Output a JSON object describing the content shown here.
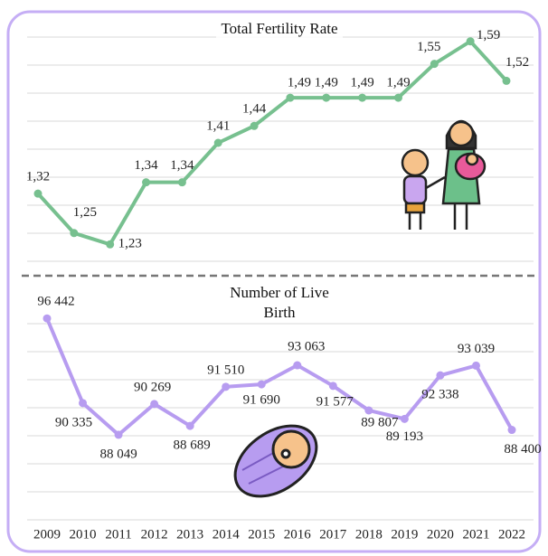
{
  "chart_data": [
    {
      "type": "line",
      "title": "Total Fertility Rate",
      "color": "#77c08f",
      "values": [
        1.32,
        1.25,
        1.23,
        1.34,
        1.34,
        1.41,
        1.44,
        1.49,
        1.49,
        1.49,
        1.49,
        1.55,
        1.59,
        1.52
      ],
      "value_labels": [
        "1,32",
        "1,25",
        "1,23",
        "1,34",
        "1,34",
        "1,41",
        "1,44",
        "1,49",
        "1,49",
        "1,49",
        "1,49",
        "1,55",
        "1,59",
        "1,52"
      ],
      "ylim": [
        1.2,
        1.62
      ]
    },
    {
      "type": "line",
      "title": "Number of Live Birth",
      "color": "#b79cf0",
      "categories": [
        "2009",
        "2010",
        "2011",
        "2012",
        "2013",
        "2014",
        "2015",
        "2016",
        "2017",
        "2018",
        "2019",
        "2020",
        "2021",
        "2022"
      ],
      "values": [
        96442,
        90335,
        88049,
        90269,
        88689,
        91510,
        91690,
        93063,
        91577,
        89807,
        89193,
        92338,
        93039,
        88400
      ],
      "value_labels": [
        "96 442",
        "90 335",
        "88 049",
        "90 269",
        "88 689",
        "91 510",
        "91 690",
        "93 063",
        "91 577",
        "89 807",
        "89 193",
        "92 338",
        "93 039",
        "88 400"
      ],
      "ylim": [
        87000,
        97500
      ]
    }
  ]
}
